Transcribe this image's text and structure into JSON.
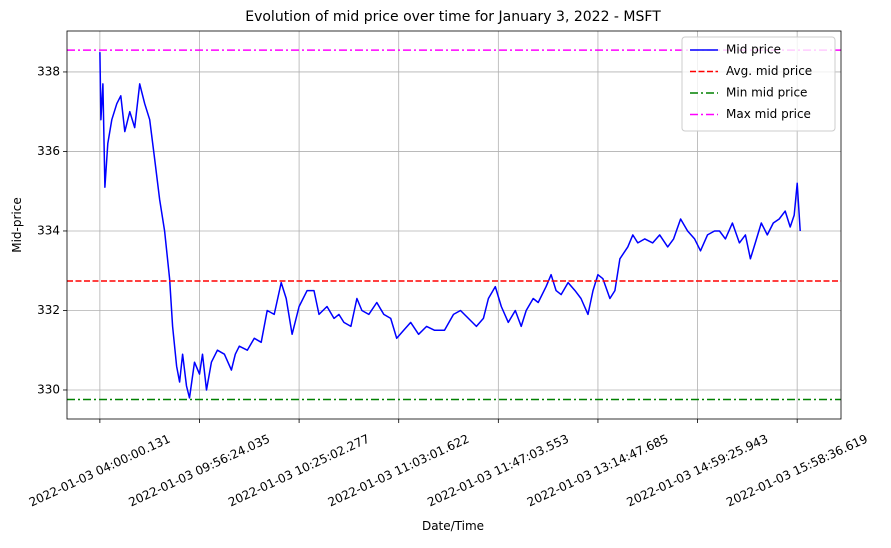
{
  "chart_data": {
    "type": "line",
    "title": "Evolution of mid price over time for January 3, 2022 - MSFT",
    "x_label": "Date/Time",
    "y_label": "Mid-price",
    "xlim": [
      -33,
      744
    ],
    "ylim": [
      329.27,
      339.03
    ],
    "xticks": [
      {
        "value": 0,
        "label": "2022-01-03 04:00:00.131"
      },
      {
        "value": 100,
        "label": "2022-01-03 09:56:24.035"
      },
      {
        "value": 200,
        "label": "2022-01-03 10:25:02.277"
      },
      {
        "value": 300,
        "label": "2022-01-03 11:03:01.622"
      },
      {
        "value": 400,
        "label": "2022-01-03 11:47:03.553"
      },
      {
        "value": 500,
        "label": "2022-01-03 13:14:47.685"
      },
      {
        "value": 600,
        "label": "2022-01-03 14:59:25.943"
      },
      {
        "value": 700,
        "label": "2022-01-03 15:58:36.619"
      }
    ],
    "yticks": [
      330,
      332,
      334,
      336,
      338
    ],
    "grid": true,
    "legend": "upper right",
    "series": [
      {
        "name": "Mid price",
        "color": "#0000ff",
        "x": [
          0,
          1,
          3,
          5,
          8,
          12,
          17,
          21,
          25,
          30,
          35,
          40,
          45,
          50,
          55,
          60,
          65,
          70,
          73,
          77,
          80,
          83,
          87,
          90,
          95,
          100,
          103,
          107,
          112,
          118,
          125,
          132,
          136,
          140,
          148,
          155,
          162,
          168,
          175,
          182,
          187,
          193,
          200,
          208,
          215,
          220,
          228,
          235,
          240,
          245,
          252,
          258,
          263,
          270,
          278,
          285,
          292,
          298,
          305,
          312,
          320,
          328,
          336,
          346,
          355,
          362,
          370,
          378,
          385,
          390,
          397,
          403,
          410,
          417,
          423,
          428,
          435,
          440,
          448,
          453,
          458,
          463,
          470,
          477,
          483,
          490,
          495,
          500,
          505,
          512,
          517,
          522,
          530,
          535,
          540,
          547,
          555,
          562,
          570,
          576,
          583,
          590,
          597,
          603,
          610,
          617,
          622,
          628,
          635,
          642,
          648,
          653,
          658,
          664,
          670,
          676,
          682,
          688,
          693,
          697,
          700,
          703
        ],
        "values": [
          338.5,
          336.8,
          337.7,
          335.1,
          336.2,
          336.8,
          337.2,
          337.4,
          336.5,
          337.0,
          336.6,
          337.7,
          337.2,
          336.8,
          335.8,
          334.8,
          334.0,
          332.8,
          331.6,
          330.6,
          330.2,
          330.9,
          330.1,
          329.8,
          330.7,
          330.4,
          330.9,
          330.0,
          330.7,
          331.0,
          330.9,
          330.5,
          330.9,
          331.1,
          331.0,
          331.3,
          331.2,
          332.0,
          331.9,
          332.7,
          332.3,
          331.4,
          332.1,
          332.5,
          332.5,
          331.9,
          332.1,
          331.8,
          331.9,
          331.7,
          331.6,
          332.3,
          332.0,
          331.9,
          332.2,
          331.9,
          331.8,
          331.3,
          331.5,
          331.7,
          331.4,
          331.6,
          331.5,
          331.5,
          331.9,
          332.0,
          331.8,
          331.6,
          331.8,
          332.3,
          332.6,
          332.1,
          331.7,
          332.0,
          331.6,
          332.0,
          332.3,
          332.2,
          332.6,
          332.9,
          332.5,
          332.4,
          332.7,
          332.5,
          332.3,
          331.9,
          332.5,
          332.9,
          332.8,
          332.3,
          332.5,
          333.3,
          333.6,
          333.9,
          333.7,
          333.8,
          333.7,
          333.9,
          333.6,
          333.8,
          334.3,
          334.0,
          333.8,
          333.5,
          333.9,
          334.0,
          334.0,
          333.8,
          334.2,
          333.7,
          333.9,
          333.3,
          333.7,
          334.2,
          333.9,
          334.2,
          334.3,
          334.5,
          334.1,
          334.4,
          335.2,
          334.0
        ]
      }
    ],
    "hlines": [
      {
        "name": "Avg. mid price",
        "color": "#ff0000",
        "style": "dashed",
        "value": 332.74
      },
      {
        "name": "Min mid price",
        "color": "#008000",
        "style": "dashdot",
        "value": 329.76
      },
      {
        "name": "Max mid price",
        "color": "#ff00ff",
        "style": "dashdot",
        "value": 338.55
      }
    ]
  }
}
